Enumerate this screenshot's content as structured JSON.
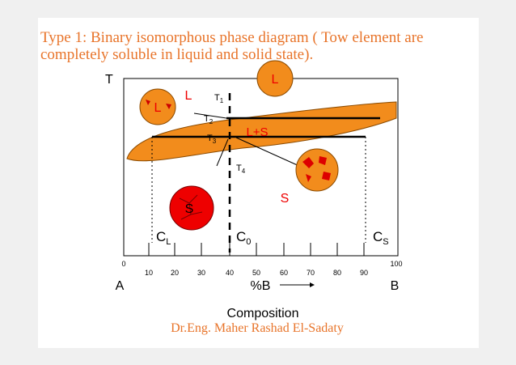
{
  "title": {
    "line1": "Type 1: Binary isomorphous phase diagram  ( Tow element are",
    "line2": "completely soluble in liquid and solid state)."
  },
  "diagram": {
    "y_axis_label": "T",
    "circles": {
      "top": "L",
      "left": "L",
      "solid": "S"
    },
    "regions": {
      "liquid": "L",
      "two_phase": "L+S",
      "solid": "S"
    },
    "temperatures": [
      {
        "base": "T",
        "sub": "1"
      },
      {
        "base": "T",
        "sub": "2"
      },
      {
        "base": "T",
        "sub": "3"
      },
      {
        "base": "T",
        "sub": "4"
      }
    ],
    "compositions": [
      {
        "base": "C",
        "sub": "L"
      },
      {
        "base": "C",
        "sub": "0"
      },
      {
        "base": "C",
        "sub": "S"
      }
    ],
    "ticks": [
      "0",
      "10",
      "20",
      "30",
      "40",
      "50",
      "60",
      "70",
      "80",
      "90",
      "100"
    ],
    "end_left": "A",
    "end_right": "B",
    "axis_label": "%B",
    "x_title": "Composition"
  },
  "author": "Dr.Eng. Maher Rashad  El-Sadaty"
}
